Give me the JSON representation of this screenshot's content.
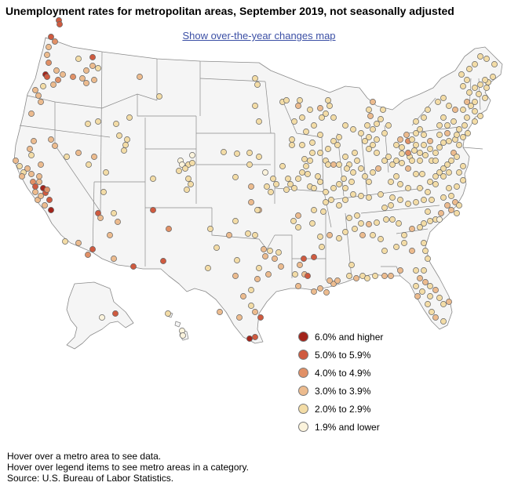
{
  "title": "Unemployment rates for metropolitan areas, September 2019, not seasonally adjusted",
  "toggle_link": "Show over-the-year changes map",
  "legend": [
    {
      "label": "6.0% and higher",
      "color": "#a3231a"
    },
    {
      "label": "5.0% to 5.9%",
      "color": "#cf5a3f"
    },
    {
      "label": "4.0% to 4.9%",
      "color": "#e19066"
    },
    {
      "label": "3.0% to 3.9%",
      "color": "#ecbb8e"
    },
    {
      "label": "2.0% to 2.9%",
      "color": "#f3dca6"
    },
    {
      "label": "1.9% and lower",
      "color": "#fbf3dc"
    }
  ],
  "notes": [
    "Hover over a metro area to see data.",
    "Hover over legend items to see metro areas in a category.",
    "Source: U.S. Bureau of Labor Statistics."
  ],
  "colors": {
    "state_fill": "#f5f5f5",
    "state_border": "#8a8a8a",
    "dot_border": "#666666",
    "link": "#3b4fa5"
  }
}
